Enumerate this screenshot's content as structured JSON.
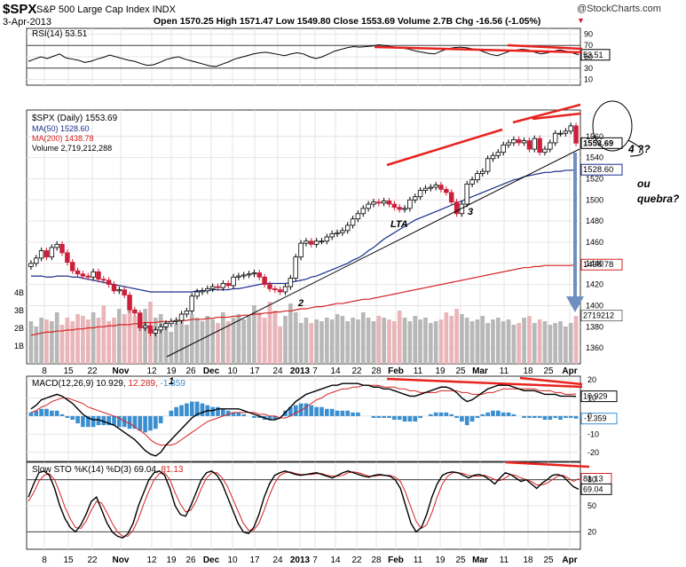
{
  "header": {
    "symbol": "$SPX",
    "name": "S&P 500 Large Cap Index  INDX",
    "date": "3-Apr-2013",
    "stats": "Open 1570.25   High 1571.47   Low 1549.80   Close 1553.69   Volume 2.7B   Chg -16.56 (-1.05%)",
    "chg_marker": "▼",
    "brand": "@StockCharts.com"
  },
  "colors": {
    "price_up": "#000000",
    "price_down": "#cc1f3a",
    "ma50": "#1a2e8c",
    "ma200": "#d62222",
    "volume_up": "#b8b8b8",
    "volume_down": "#e9b5b9",
    "macd_hist": "#3a8fd0",
    "annotation": "#e8231e",
    "arrow": "#6f8fc3"
  },
  "chart_data": [
    {
      "type": "line",
      "title": "RSI(14) 53.51",
      "yticks": [
        90,
        70,
        50,
        30,
        10
      ],
      "ylim": [
        0,
        100
      ],
      "reference_lines": [
        70,
        30
      ],
      "series": [
        {
          "name": "RSI(14)",
          "values": [
            42,
            46,
            50,
            47,
            51,
            55,
            48,
            46,
            44,
            40,
            42,
            46,
            49,
            53,
            50,
            47,
            44,
            42,
            38,
            35,
            36,
            40,
            45,
            48,
            50,
            46,
            43,
            40,
            37,
            34,
            33,
            37,
            41,
            46,
            49,
            52,
            55,
            57,
            58,
            56,
            54,
            52,
            55,
            57,
            55,
            50,
            47,
            50,
            55,
            60,
            63,
            66,
            68,
            67,
            68,
            69,
            71,
            70,
            68,
            67,
            65,
            63,
            60,
            58,
            56,
            55,
            60,
            64,
            66,
            67,
            66,
            64,
            62,
            58,
            54,
            52,
            56,
            60,
            62,
            63,
            62,
            58,
            55,
            57,
            60,
            62,
            60,
            57,
            53.51
          ]
        }
      ],
      "last_value_label": "53.51"
    },
    {
      "type": "bar",
      "title": "$SPX (Daily) 1553.69",
      "legend": [
        "MA(50) 1528.60",
        "MA(200) 1438.78",
        "Volume 2,719,212,288"
      ],
      "yticks": [
        1560,
        1540,
        1520,
        1500,
        1480,
        1460,
        1440,
        1420,
        1400,
        1380,
        1360
      ],
      "ylim": [
        1345,
        1585
      ],
      "volume_labels": [
        "4B",
        "3B",
        "2B",
        "1B"
      ],
      "close": [
        1440,
        1445,
        1452,
        1446,
        1455,
        1458,
        1450,
        1441,
        1433,
        1430,
        1428,
        1427,
        1432,
        1425,
        1424,
        1420,
        1414,
        1415,
        1410,
        1396,
        1393,
        1379,
        1381,
        1374,
        1377,
        1380,
        1383,
        1385,
        1386,
        1392,
        1395,
        1409,
        1413,
        1414,
        1416,
        1418,
        1417,
        1421,
        1419,
        1427,
        1428,
        1429,
        1430,
        1431,
        1427,
        1420,
        1416,
        1415,
        1413,
        1418,
        1426,
        1446,
        1459,
        1461,
        1458,
        1461,
        1461,
        1465,
        1468,
        1469,
        1471,
        1476,
        1482,
        1487,
        1492,
        1496,
        1498,
        1497,
        1499,
        1496,
        1493,
        1491,
        1492,
        1500,
        1503,
        1509,
        1511,
        1512,
        1514,
        1510,
        1507,
        1498,
        1487,
        1496,
        1515,
        1519,
        1525,
        1527,
        1539,
        1542,
        1545,
        1552,
        1554,
        1557,
        1554,
        1556,
        1548,
        1558,
        1545,
        1548,
        1554,
        1563,
        1563,
        1565,
        1570,
        1553.69
      ],
      "ma50": [
        1428,
        1428,
        1428,
        1427,
        1427,
        1428,
        1428,
        1428,
        1427,
        1427,
        1426,
        1425,
        1424,
        1423,
        1422,
        1421,
        1420,
        1419,
        1418,
        1417,
        1416,
        1415,
        1414,
        1413,
        1413,
        1413,
        1413,
        1413,
        1413,
        1413,
        1413,
        1413,
        1414,
        1414,
        1414,
        1415,
        1415,
        1415,
        1415,
        1416,
        1416,
        1417,
        1418,
        1419,
        1420,
        1421,
        1421,
        1421,
        1421,
        1421,
        1422,
        1423,
        1424,
        1425,
        1427,
        1428,
        1430,
        1432,
        1434,
        1436,
        1438,
        1440,
        1443,
        1445,
        1448,
        1452,
        1455,
        1459,
        1463,
        1466,
        1469,
        1472,
        1475,
        1478,
        1481,
        1483,
        1485,
        1487,
        1489,
        1491,
        1493,
        1495,
        1497,
        1499,
        1501,
        1503,
        1505,
        1507,
        1509,
        1511,
        1513,
        1515,
        1517,
        1519,
        1520,
        1522,
        1523,
        1524,
        1525,
        1526,
        1526,
        1527,
        1527,
        1528,
        1528,
        1528.6
      ],
      "ma200": [
        1372,
        1373,
        1374,
        1375,
        1375,
        1376,
        1376,
        1377,
        1377,
        1378,
        1378,
        1379,
        1379,
        1380,
        1380,
        1381,
        1381,
        1382,
        1382,
        1382,
        1383,
        1383,
        1384,
        1384,
        1384,
        1385,
        1385,
        1385,
        1386,
        1386,
        1386,
        1387,
        1387,
        1387,
        1388,
        1388,
        1389,
        1389,
        1389,
        1390,
        1390,
        1391,
        1391,
        1392,
        1392,
        1393,
        1393,
        1394,
        1394,
        1395,
        1395,
        1396,
        1397,
        1397,
        1398,
        1399,
        1399,
        1400,
        1401,
        1402,
        1402,
        1403,
        1404,
        1405,
        1406,
        1406,
        1407,
        1408,
        1409,
        1410,
        1411,
        1412,
        1413,
        1414,
        1415,
        1416,
        1417,
        1418,
        1419,
        1420,
        1421,
        1422,
        1423,
        1424,
        1425,
        1426,
        1427,
        1428,
        1429,
        1430,
        1431,
        1432,
        1433,
        1434,
        1435,
        1436,
        1436,
        1437,
        1437,
        1438,
        1438,
        1438,
        1438,
        1438,
        1438,
        1438.78
      ],
      "volume": [
        2.4,
        2.1,
        2.6,
        2.5,
        2.4,
        2.9,
        2.2,
        2.6,
        2.4,
        2.8,
        2.7,
        2.5,
        2.9,
        2.6,
        3.3,
        2.4,
        2.6,
        3.1,
        2.8,
        3.2,
        2.7,
        2.9,
        3.1,
        3.5,
        2.6,
        2.8,
        2.4,
        1.8,
        2.3,
        2.5,
        2.2,
        2.8,
        2.6,
        2.4,
        2.7,
        2.5,
        2.3,
        2.9,
        2.4,
        2.6,
        2.8,
        2.5,
        2.7,
        3.3,
        2.9,
        2.6,
        3.5,
        3.0,
        2.1,
        2.7,
        3.4,
        2.9,
        2.3,
        2.6,
        2.3,
        2.5,
        2.4,
        2.6,
        2.5,
        2.8,
        2.7,
        2.4,
        2.6,
        2.5,
        2.9,
        2.6,
        2.4,
        2.7,
        2.6,
        2.5,
        2.4,
        3.0,
        2.6,
        2.4,
        2.7,
        2.5,
        2.6,
        2.3,
        2.4,
        2.5,
        2.9,
        2.7,
        3.1,
        2.8,
        2.6,
        2.4,
        2.5,
        2.7,
        2.3,
        2.5,
        2.6,
        2.4,
        2.5,
        2.2,
        2.3,
        2.6,
        2.7,
        2.3,
        2.5,
        2.4,
        2.2,
        2.3,
        2.4,
        2.1,
        2.3,
        2.7
      ],
      "last_value_labels": [
        "1553.69",
        "1528.60",
        "1438.78",
        "2719212"
      ],
      "annotations": [
        "1",
        "2",
        "3",
        "LTA",
        "4 ??",
        "ou",
        "quebra?"
      ]
    },
    {
      "type": "line",
      "title": "MACD(12,26,9) 10.929, 12.289, -1.359",
      "title_parts": {
        "label": "MACD(12,26,9)",
        "macd": "10.929,",
        "signal": "12.289,",
        "hist": "-1.359"
      },
      "yticks": [
        20,
        10,
        0,
        -10,
        -20
      ],
      "ylim": [
        -25,
        22
      ],
      "series": [
        {
          "name": "MACD",
          "values": [
            4,
            6,
            9,
            10,
            11,
            12,
            11,
            9,
            7,
            4,
            1,
            -1,
            -2,
            -2,
            -3,
            -4,
            -5,
            -7,
            -9,
            -11,
            -13,
            -16,
            -19,
            -21,
            -22,
            -20,
            -16,
            -13,
            -10,
            -7,
            -4,
            -1,
            1,
            2,
            3,
            3,
            4,
            4,
            4,
            4,
            4,
            3,
            2,
            1,
            0,
            -1,
            -2,
            -2,
            -1,
            2,
            5,
            8,
            10,
            12,
            13,
            14,
            15,
            16,
            17,
            17,
            18,
            18,
            18,
            18,
            17,
            17,
            16,
            16,
            15,
            15,
            14,
            13,
            12,
            11,
            11,
            12,
            13,
            14,
            15,
            16,
            16,
            15,
            13,
            10,
            8,
            9,
            11,
            13,
            15,
            16,
            17,
            17,
            17,
            16,
            15,
            14,
            14,
            14,
            13,
            12,
            12,
            12,
            11,
            11,
            11,
            10.929
          ]
        },
        {
          "name": "Signal",
          "values": [
            2,
            3,
            5,
            6,
            8,
            9,
            10,
            10,
            9,
            8,
            7,
            5,
            4,
            3,
            2,
            1,
            0,
            -1,
            -3,
            -4,
            -6,
            -8,
            -10,
            -13,
            -15,
            -16,
            -16,
            -16,
            -15,
            -13,
            -11,
            -9,
            -7,
            -5,
            -3,
            -2,
            -1,
            0,
            1,
            2,
            2,
            2,
            2,
            2,
            1,
            1,
            0,
            0,
            -1,
            -1,
            0,
            2,
            3,
            5,
            7,
            9,
            10,
            12,
            13,
            14,
            15,
            15,
            16,
            16,
            17,
            17,
            17,
            17,
            16,
            16,
            16,
            15,
            15,
            14,
            14,
            13,
            13,
            13,
            13,
            14,
            14,
            14,
            14,
            13,
            13,
            12,
            12,
            12,
            13,
            13,
            14,
            15,
            15,
            15,
            15,
            15,
            15,
            15,
            14,
            14,
            14,
            13,
            13,
            12,
            12,
            12.289
          ]
        }
      ],
      "last_value_labels": [
        "10.929",
        "-1.359"
      ]
    },
    {
      "type": "line",
      "title": "Slow STO %K(14) %D(3) 69.04, 81.13",
      "title_parts": {
        "label": "Slow STO %K(14) %D(3)",
        "k": "69.04,",
        "d": "81.13"
      },
      "yticks": [
        80,
        50,
        20
      ],
      "ylim": [
        0,
        100
      ],
      "reference_lines": [
        80,
        20
      ],
      "series": [
        {
          "name": "%K",
          "values": [
            60,
            75,
            88,
            90,
            85,
            70,
            50,
            35,
            25,
            20,
            28,
            40,
            55,
            60,
            45,
            30,
            20,
            15,
            13,
            18,
            30,
            50,
            65,
            80,
            88,
            90,
            85,
            70,
            50,
            40,
            38,
            50,
            65,
            80,
            88,
            90,
            85,
            75,
            60,
            45,
            30,
            20,
            18,
            25,
            40,
            60,
            75,
            85,
            88,
            90,
            88,
            86,
            85,
            86,
            87,
            88,
            86,
            84,
            82,
            85,
            88,
            90,
            88,
            86,
            84,
            83,
            85,
            86,
            85,
            84,
            80,
            70,
            50,
            30,
            20,
            25,
            40,
            60,
            75,
            85,
            88,
            89,
            88,
            85,
            82,
            85,
            86,
            84,
            80,
            75,
            82,
            88,
            86,
            82,
            78,
            80,
            75,
            70,
            76,
            80,
            85,
            86,
            84,
            78,
            72,
            69.04
          ]
        },
        {
          "name": "%D",
          "values": [
            55,
            65,
            78,
            85,
            87,
            80,
            65,
            48,
            35,
            25,
            24,
            32,
            45,
            55,
            53,
            42,
            30,
            20,
            15,
            15,
            22,
            35,
            52,
            67,
            80,
            87,
            88,
            80,
            65,
            52,
            43,
            45,
            55,
            70,
            82,
            88,
            88,
            82,
            72,
            58,
            44,
            30,
            22,
            22,
            30,
            45,
            62,
            76,
            85,
            88,
            89,
            87,
            86,
            86,
            86,
            87,
            87,
            85,
            84,
            84,
            85,
            88,
            89,
            88,
            86,
            84,
            84,
            85,
            85,
            85,
            83,
            78,
            65,
            48,
            32,
            24,
            28,
            42,
            60,
            75,
            84,
            88,
            88,
            87,
            85,
            84,
            84,
            85,
            83,
            80,
            79,
            82,
            86,
            85,
            82,
            80,
            78,
            74,
            74,
            76,
            80,
            84,
            85,
            82,
            78,
            81.13
          ]
        }
      ],
      "last_value_labels": [
        "81.13",
        "69.04"
      ]
    }
  ],
  "xaxis": {
    "labels": [
      "8",
      "15",
      "22",
      "Nov",
      "12",
      "19",
      "26",
      "Dec",
      "10",
      "17",
      "24",
      "2013",
      "7",
      "14",
      "22",
      "28",
      "Feb",
      "11",
      "19",
      "25",
      "Mar",
      "11",
      "18",
      "25",
      "Apr"
    ]
  }
}
